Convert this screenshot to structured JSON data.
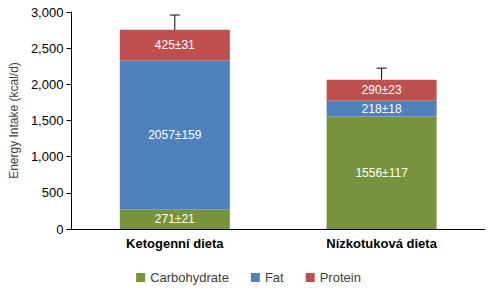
{
  "chart_data": {
    "type": "bar",
    "stacked": true,
    "data_labels": true,
    "grid": false,
    "legend": "bottom",
    "y_label": "Energy Intake (kcal/d)",
    "categories": [
      "Ketogenní dieta",
      "Nízkotuková dieta"
    ],
    "ylim": [
      0,
      3000
    ],
    "yticks": [
      0,
      500,
      1000,
      1500,
      2000,
      2500,
      3000
    ],
    "series": [
      {
        "name": "Carbohydrate",
        "color": "#77933c",
        "values": [
          271,
          1556
        ],
        "value_labels": [
          "271±21",
          "1556±117"
        ]
      },
      {
        "name": "Fat",
        "color": "#4f81bd",
        "values": [
          2057,
          218
        ],
        "value_labels": [
          "2057±159",
          "218±18"
        ]
      },
      {
        "name": "Protein",
        "color": "#c0504d",
        "values": [
          425,
          290
        ],
        "value_labels": [
          "425±31",
          "290±23"
        ]
      }
    ],
    "total_error": [
      205,
      160
    ]
  }
}
